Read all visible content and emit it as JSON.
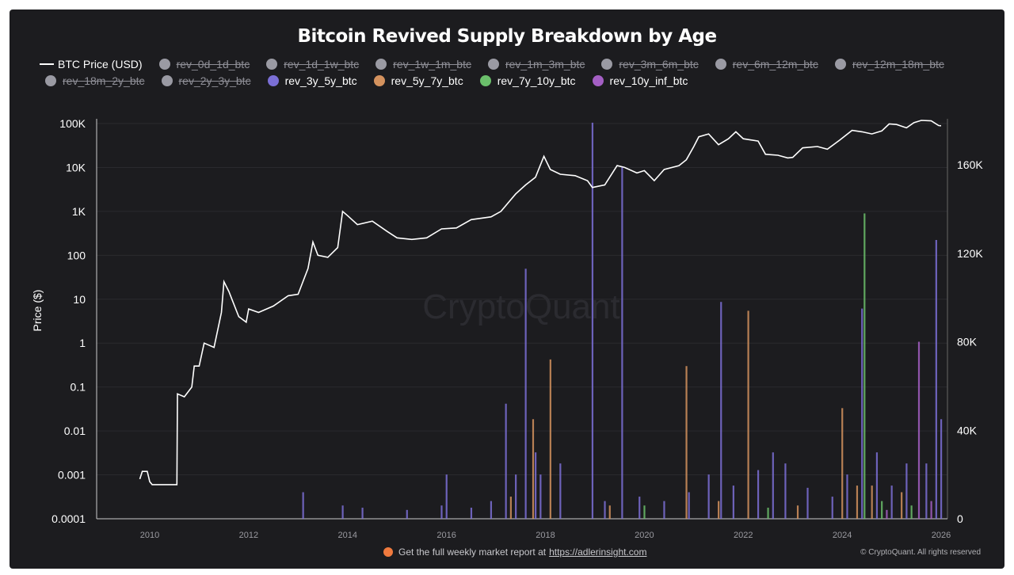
{
  "chart_data": {
    "type": "bar+line",
    "title": "Bitcoin Revived Supply Breakdown by Age",
    "ylabel_left": "Price ($)",
    "ylabel_right": "",
    "left_axis": {
      "scale": "log",
      "range": [
        0.0001,
        100000
      ],
      "ticks": [
        "0.0001",
        "0.001",
        "0.01",
        "0.1",
        "1",
        "10",
        "100",
        "1K",
        "10K",
        "100K"
      ]
    },
    "right_axis": {
      "scale": "linear",
      "range": [
        0,
        160000
      ],
      "ticks": [
        "0",
        "40K",
        "80K",
        "120K",
        "160K"
      ]
    },
    "x_axis": {
      "range": [
        2009,
        2026.2
      ],
      "ticks": [
        "2010",
        "2012",
        "2014",
        "2016",
        "2018",
        "2020",
        "2022",
        "2024",
        "2026"
      ]
    },
    "grid": true,
    "legend_placement": "top",
    "watermark": "CryptoQuant",
    "legend": [
      {
        "name": "BTC Price (USD)",
        "type": "line",
        "color": "#ffffff",
        "active": true
      },
      {
        "name": "rev_0d_1d_btc",
        "color": "#9a9aa3",
        "active": false
      },
      {
        "name": "rev_1d_1w_btc",
        "color": "#9a9aa3",
        "active": false
      },
      {
        "name": "rev_1w_1m_btc",
        "color": "#9a9aa3",
        "active": false
      },
      {
        "name": "rev_1m_3m_btc",
        "color": "#9a9aa3",
        "active": false
      },
      {
        "name": "rev_3m_6m_btc",
        "color": "#9a9aa3",
        "active": false
      },
      {
        "name": "rev_6m_12m_btc",
        "color": "#9a9aa3",
        "active": false
      },
      {
        "name": "rev_12m_18m_btc",
        "color": "#9a9aa3",
        "active": false
      },
      {
        "name": "rev_18m_2y_btc",
        "color": "#9a9aa3",
        "active": false
      },
      {
        "name": "rev_2y_3y_btc",
        "color": "#9a9aa3",
        "active": false
      },
      {
        "name": "rev_3y_5y_btc",
        "color": "#7b6fd6",
        "active": true
      },
      {
        "name": "rev_5y_7y_btc",
        "color": "#d4925e",
        "active": true
      },
      {
        "name": "rev_7y_10y_btc",
        "color": "#6bbf6b",
        "active": true
      },
      {
        "name": "rev_10y_inf_btc",
        "color": "#a45fc4",
        "active": true
      }
    ],
    "price_series": [
      [
        2009.8,
        0.0008
      ],
      [
        2009.85,
        0.0012
      ],
      [
        2009.95,
        0.0012
      ],
      [
        2010.0,
        0.0007
      ],
      [
        2010.05,
        0.0006
      ],
      [
        2010.55,
        0.0006
      ],
      [
        2010.56,
        0.07
      ],
      [
        2010.7,
        0.06
      ],
      [
        2010.85,
        0.1
      ],
      [
        2010.9,
        0.3
      ],
      [
        2011.0,
        0.3
      ],
      [
        2011.1,
        1
      ],
      [
        2011.3,
        0.8
      ],
      [
        2011.45,
        5
      ],
      [
        2011.5,
        25
      ],
      [
        2011.6,
        15
      ],
      [
        2011.8,
        4
      ],
      [
        2011.95,
        3
      ],
      [
        2012.0,
        6
      ],
      [
        2012.2,
        5
      ],
      [
        2012.5,
        7
      ],
      [
        2012.8,
        12
      ],
      [
        2013.0,
        13
      ],
      [
        2013.2,
        50
      ],
      [
        2013.3,
        200
      ],
      [
        2013.4,
        100
      ],
      [
        2013.6,
        90
      ],
      [
        2013.8,
        150
      ],
      [
        2013.9,
        1000
      ],
      [
        2014.0,
        800
      ],
      [
        2014.2,
        500
      ],
      [
        2014.5,
        600
      ],
      [
        2014.8,
        350
      ],
      [
        2015.0,
        250
      ],
      [
        2015.3,
        230
      ],
      [
        2015.6,
        250
      ],
      [
        2015.9,
        400
      ],
      [
        2016.2,
        420
      ],
      [
        2016.5,
        650
      ],
      [
        2016.9,
        750
      ],
      [
        2017.1,
        1000
      ],
      [
        2017.4,
        2500
      ],
      [
        2017.6,
        4000
      ],
      [
        2017.8,
        6000
      ],
      [
        2017.97,
        18000
      ],
      [
        2018.1,
        9000
      ],
      [
        2018.3,
        7000
      ],
      [
        2018.6,
        6500
      ],
      [
        2018.85,
        5000
      ],
      [
        2018.95,
        3500
      ],
      [
        2019.2,
        4000
      ],
      [
        2019.45,
        11000
      ],
      [
        2019.6,
        10000
      ],
      [
        2019.85,
        7500
      ],
      [
        2020.0,
        8500
      ],
      [
        2020.2,
        5000
      ],
      [
        2020.4,
        9000
      ],
      [
        2020.7,
        11000
      ],
      [
        2020.85,
        15000
      ],
      [
        2021.0,
        30000
      ],
      [
        2021.1,
        50000
      ],
      [
        2021.3,
        58000
      ],
      [
        2021.5,
        33000
      ],
      [
        2021.7,
        45000
      ],
      [
        2021.85,
        65000
      ],
      [
        2022.0,
        45000
      ],
      [
        2022.3,
        40000
      ],
      [
        2022.45,
        20000
      ],
      [
        2022.7,
        19000
      ],
      [
        2022.9,
        16500
      ],
      [
        2023.0,
        17000
      ],
      [
        2023.2,
        28000
      ],
      [
        2023.5,
        30000
      ],
      [
        2023.7,
        26000
      ],
      [
        2023.95,
        42000
      ],
      [
        2024.2,
        70000
      ],
      [
        2024.4,
        65000
      ],
      [
        2024.6,
        58000
      ],
      [
        2024.8,
        68000
      ],
      [
        2024.95,
        98000
      ],
      [
        2025.1,
        95000
      ],
      [
        2025.3,
        80000
      ],
      [
        2025.45,
        105000
      ],
      [
        2025.6,
        118000
      ],
      [
        2025.8,
        115000
      ],
      [
        2025.95,
        90000
      ],
      [
        2026.0,
        89000
      ]
    ],
    "bar_series": [
      {
        "name": "rev_3y_5y_btc",
        "points": [
          [
            2013.1,
            12000
          ],
          [
            2013.9,
            6000
          ],
          [
            2014.3,
            5000
          ],
          [
            2015.2,
            4000
          ],
          [
            2015.9,
            6000
          ],
          [
            2016.0,
            20000
          ],
          [
            2016.5,
            5000
          ],
          [
            2016.9,
            8000
          ],
          [
            2017.2,
            52000
          ],
          [
            2017.4,
            20000
          ],
          [
            2017.6,
            113000
          ],
          [
            2017.8,
            30000
          ],
          [
            2017.9,
            20000
          ],
          [
            2018.3,
            25000
          ],
          [
            2018.95,
            179000
          ],
          [
            2019.2,
            8000
          ],
          [
            2019.55,
            159000
          ],
          [
            2019.9,
            10000
          ],
          [
            2020.4,
            8000
          ],
          [
            2020.9,
            12000
          ],
          [
            2021.3,
            20000
          ],
          [
            2021.55,
            98000
          ],
          [
            2021.8,
            15000
          ],
          [
            2022.3,
            22000
          ],
          [
            2022.6,
            30000
          ],
          [
            2022.85,
            25000
          ],
          [
            2023.3,
            14000
          ],
          [
            2023.8,
            10000
          ],
          [
            2024.1,
            20000
          ],
          [
            2024.4,
            95000
          ],
          [
            2024.7,
            30000
          ],
          [
            2025.0,
            15000
          ],
          [
            2025.3,
            25000
          ],
          [
            2025.7,
            25000
          ],
          [
            2025.9,
            126000
          ],
          [
            2026.0,
            45000
          ]
        ]
      },
      {
        "name": "rev_5y_7y_btc",
        "points": [
          [
            2017.3,
            10000
          ],
          [
            2017.75,
            45000
          ],
          [
            2018.1,
            72000
          ],
          [
            2019.3,
            6000
          ],
          [
            2020.85,
            69000
          ],
          [
            2021.5,
            8000
          ],
          [
            2022.1,
            94000
          ],
          [
            2023.1,
            6000
          ],
          [
            2024.0,
            50000
          ],
          [
            2024.3,
            15000
          ],
          [
            2024.6,
            15000
          ],
          [
            2025.2,
            12000
          ]
        ]
      },
      {
        "name": "rev_7y_10y_btc",
        "points": [
          [
            2020.0,
            6000
          ],
          [
            2022.5,
            5000
          ],
          [
            2024.45,
            138000
          ],
          [
            2024.8,
            8000
          ],
          [
            2025.4,
            6000
          ]
        ]
      },
      {
        "name": "rev_10y_inf_btc",
        "points": [
          [
            2024.9,
            4000
          ],
          [
            2025.55,
            80000
          ],
          [
            2025.8,
            8000
          ]
        ]
      }
    ]
  },
  "footer": {
    "text": "Get the full weekly market report at",
    "link": "https://adlerinsight.com",
    "copyright": "© CryptoQuant. All rights reserved"
  }
}
